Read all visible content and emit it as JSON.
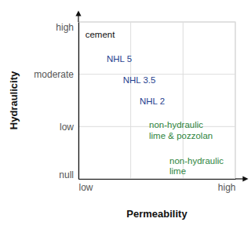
{
  "chart_data": {
    "type": "scatter",
    "x_label": "Permeability",
    "y_label": "Hydraulicity",
    "xlim": [
      0,
      3
    ],
    "xticks": [
      {
        "value": 0,
        "label": "low"
      },
      {
        "value": 1,
        "label": null
      },
      {
        "value": 2,
        "label": null
      },
      {
        "value": 3,
        "label": "high"
      }
    ],
    "ylim": [
      0,
      3
    ],
    "yticks": [
      {
        "value": 0,
        "label": "null"
      },
      {
        "value": 1,
        "label": "low"
      },
      {
        "value": 2,
        "label": "moderate"
      },
      {
        "value": 3,
        "label": "high"
      }
    ],
    "grid": true,
    "annotations": [
      {
        "text": [
          "cement"
        ],
        "x": 0.13,
        "y": 2.7,
        "color": "#111111"
      },
      {
        "text": [
          "NHL 5"
        ],
        "x": 0.54,
        "y": 2.23,
        "color": "#1f3f8f"
      },
      {
        "text": [
          "NHL 3.5"
        ],
        "x": 0.85,
        "y": 1.83,
        "color": "#1f3f8f"
      },
      {
        "text": [
          "NHL 2"
        ],
        "x": 1.17,
        "y": 1.43,
        "color": "#1f3f8f"
      },
      {
        "text": [
          "non-hydraulic",
          "lime & pozzolan"
        ],
        "x": 1.35,
        "y": 0.97,
        "color": "#2e8540"
      },
      {
        "text": [
          "non-hydraulic",
          "lime"
        ],
        "x": 1.74,
        "y": 0.29,
        "color": "#2e8540"
      }
    ]
  }
}
